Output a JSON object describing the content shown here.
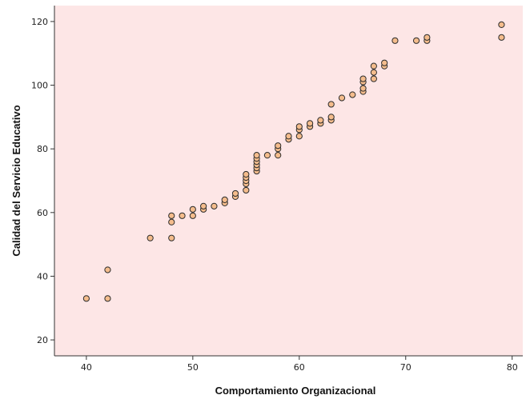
{
  "chart_data": {
    "type": "scatter",
    "title": "",
    "xlabel": "Comportamiento Organizacional",
    "ylabel": "Calidad del Servicio Educativo",
    "xlim": [
      37,
      81
    ],
    "ylim": [
      15,
      125
    ],
    "x_ticks": [
      40,
      50,
      60,
      70,
      80
    ],
    "y_ticks": [
      20,
      40,
      60,
      80,
      100,
      120
    ],
    "grid": false,
    "legend": "none",
    "colors": {
      "plot_background": "#fde6e6",
      "marker_fill": "#f4bc8c",
      "marker_edge": "#2b2b2b"
    },
    "points": [
      {
        "x": 40,
        "y": 33
      },
      {
        "x": 42,
        "y": 33
      },
      {
        "x": 42,
        "y": 42
      },
      {
        "x": 46,
        "y": 52
      },
      {
        "x": 48,
        "y": 52
      },
      {
        "x": 48,
        "y": 57
      },
      {
        "x": 48,
        "y": 59
      },
      {
        "x": 49,
        "y": 59
      },
      {
        "x": 50,
        "y": 59
      },
      {
        "x": 50,
        "y": 61
      },
      {
        "x": 51,
        "y": 61
      },
      {
        "x": 51,
        "y": 62
      },
      {
        "x": 52,
        "y": 62
      },
      {
        "x": 53,
        "y": 63
      },
      {
        "x": 53,
        "y": 64
      },
      {
        "x": 54,
        "y": 65
      },
      {
        "x": 54,
        "y": 66
      },
      {
        "x": 55,
        "y": 67
      },
      {
        "x": 55,
        "y": 69
      },
      {
        "x": 55,
        "y": 70
      },
      {
        "x": 55,
        "y": 71
      },
      {
        "x": 55,
        "y": 72
      },
      {
        "x": 56,
        "y": 73
      },
      {
        "x": 56,
        "y": 74
      },
      {
        "x": 56,
        "y": 75
      },
      {
        "x": 56,
        "y": 76
      },
      {
        "x": 56,
        "y": 77
      },
      {
        "x": 56,
        "y": 78
      },
      {
        "x": 57,
        "y": 78
      },
      {
        "x": 58,
        "y": 78
      },
      {
        "x": 58,
        "y": 80
      },
      {
        "x": 58,
        "y": 81
      },
      {
        "x": 59,
        "y": 83
      },
      {
        "x": 59,
        "y": 84
      },
      {
        "x": 60,
        "y": 84
      },
      {
        "x": 60,
        "y": 86
      },
      {
        "x": 60,
        "y": 87
      },
      {
        "x": 61,
        "y": 87
      },
      {
        "x": 61,
        "y": 88
      },
      {
        "x": 62,
        "y": 88
      },
      {
        "x": 62,
        "y": 89
      },
      {
        "x": 63,
        "y": 89
      },
      {
        "x": 63,
        "y": 90
      },
      {
        "x": 63,
        "y": 94
      },
      {
        "x": 64,
        "y": 96
      },
      {
        "x": 65,
        "y": 97
      },
      {
        "x": 66,
        "y": 98
      },
      {
        "x": 66,
        "y": 99
      },
      {
        "x": 66,
        "y": 101
      },
      {
        "x": 66,
        "y": 102
      },
      {
        "x": 67,
        "y": 102
      },
      {
        "x": 67,
        "y": 104
      },
      {
        "x": 67,
        "y": 106
      },
      {
        "x": 68,
        "y": 106
      },
      {
        "x": 68,
        "y": 107
      },
      {
        "x": 69,
        "y": 114
      },
      {
        "x": 71,
        "y": 114
      },
      {
        "x": 72,
        "y": 114
      },
      {
        "x": 72,
        "y": 115
      },
      {
        "x": 79,
        "y": 115
      },
      {
        "x": 79,
        "y": 119
      }
    ]
  }
}
